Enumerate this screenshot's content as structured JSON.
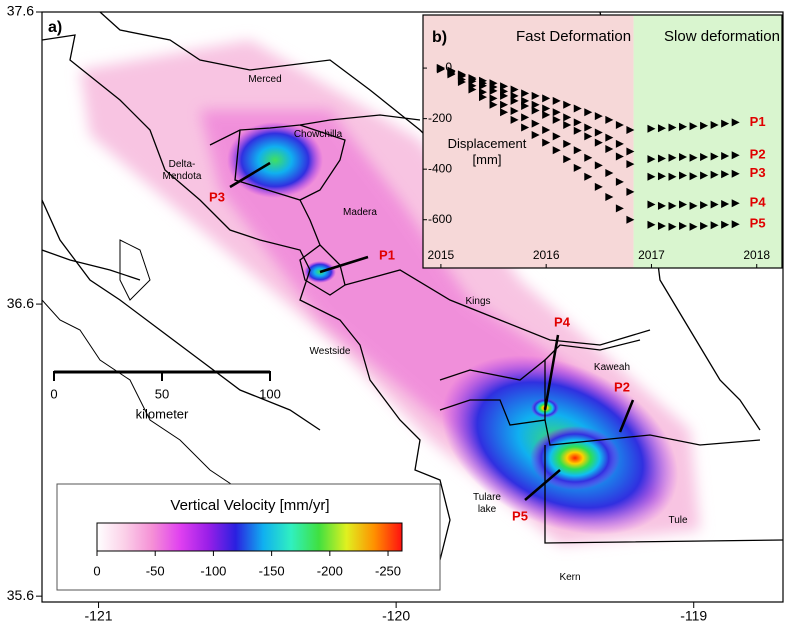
{
  "map": {
    "panel_label": "a)",
    "xlim": [
      -121.19,
      -118.7
    ],
    "ylim": [
      35.58,
      37.6
    ],
    "xticks": [
      -121,
      -120,
      -119
    ],
    "yticks": [
      35.6,
      36.6,
      37.6
    ],
    "regions": [
      "Merced",
      "Chowchilla",
      "Delta-Mendota",
      "Madera",
      "Kings",
      "Westside",
      "Kaweah",
      "Tulare lake",
      "Tule",
      "Kern"
    ],
    "points": [
      "P1",
      "P2",
      "P3",
      "P4",
      "P5"
    ],
    "point_color": "#e00000",
    "scale_bar": {
      "ticks": [
        0,
        50,
        100
      ],
      "unit": "kilometer"
    },
    "colorbar": {
      "title": "Vertical Velocity [mm/yr]",
      "lim": [
        0,
        -262
      ],
      "ticks": [
        0,
        -50,
        -100,
        -150,
        -200,
        -250
      ],
      "colormap": [
        "#ffffff",
        "#fbd0e8",
        "#f58fd6",
        "#e040f0",
        "#9a1fe8",
        "#2a20e0",
        "#10b0f0",
        "#30f0c0",
        "#40e040",
        "#e0f020",
        "#ff9000",
        "#ff1010"
      ]
    }
  },
  "chart_data": {
    "type": "scatter",
    "panel_label": "b)",
    "ylabel": "Displacement [mm]",
    "xlim": [
      2014.83,
      2018.24
    ],
    "ylim": [
      -700,
      210
    ],
    "xticks": [
      2015,
      2016,
      2017,
      2018
    ],
    "yticks": [
      0,
      -200,
      -400,
      -600
    ],
    "periods": [
      {
        "label": "Fast Deformation",
        "start": 2014.83,
        "end": 2016.83,
        "color": "#f6d8d8"
      },
      {
        "label": "Slow deformation",
        "start": 2016.83,
        "end": 2018.24,
        "color": "#d9f5cf"
      }
    ],
    "x": [
      2015.0,
      2015.1,
      2015.2,
      2015.3,
      2015.4,
      2015.5,
      2015.6,
      2015.7,
      2015.8,
      2015.9,
      2016.0,
      2016.1,
      2016.2,
      2016.3,
      2016.4,
      2016.5,
      2016.6,
      2016.7,
      2016.8,
      2017.0,
      2017.1,
      2017.2,
      2017.3,
      2017.4,
      2017.5,
      2017.6,
      2017.7,
      2017.8
    ],
    "label_color": "#e00000",
    "series": [
      {
        "name": "P1",
        "color": "#000000",
        "values": [
          0,
          -10,
          -25,
          -40,
          -50,
          -60,
          -72,
          -85,
          -100,
          -110,
          -120,
          -130,
          -145,
          -160,
          -175,
          -190,
          -205,
          -225,
          -245,
          -240,
          -238,
          -235,
          -232,
          -230,
          -228,
          -225,
          -220,
          -215
        ]
      },
      {
        "name": "P2",
        "color": "#000000",
        "values": [
          0,
          -12,
          -28,
          -45,
          -60,
          -75,
          -92,
          -110,
          -130,
          -145,
          -160,
          -175,
          -195,
          -215,
          -235,
          -255,
          -275,
          -300,
          -330,
          -360,
          -358,
          -355,
          -352,
          -355,
          -352,
          -350,
          -348,
          -345
        ]
      },
      {
        "name": "P3",
        "color": "#000000",
        "values": [
          0,
          -15,
          -32,
          -52,
          -70,
          -90,
          -110,
          -130,
          -150,
          -168,
          -185,
          -205,
          -225,
          -248,
          -270,
          -295,
          -320,
          -350,
          -380,
          -430,
          -428,
          -430,
          -425,
          -428,
          -425,
          -422,
          -420,
          -418
        ]
      },
      {
        "name": "P4",
        "color": "#000000",
        "values": [
          0,
          -20,
          -45,
          -70,
          -95,
          -120,
          -145,
          -170,
          -195,
          -220,
          -245,
          -270,
          -300,
          -325,
          -355,
          -385,
          -415,
          -450,
          -490,
          -540,
          -545,
          -545,
          -540,
          -545,
          -542,
          -540,
          -538,
          -535
        ]
      },
      {
        "name": "P5",
        "color": "#000000",
        "values": [
          -5,
          -25,
          -55,
          -85,
          -115,
          -145,
          -175,
          -205,
          -235,
          -265,
          -295,
          -325,
          -360,
          -395,
          -430,
          -470,
          -510,
          -555,
          -600,
          -620,
          -625,
          -628,
          -625,
          -628,
          -625,
          -622,
          -620,
          -618
        ]
      }
    ]
  }
}
